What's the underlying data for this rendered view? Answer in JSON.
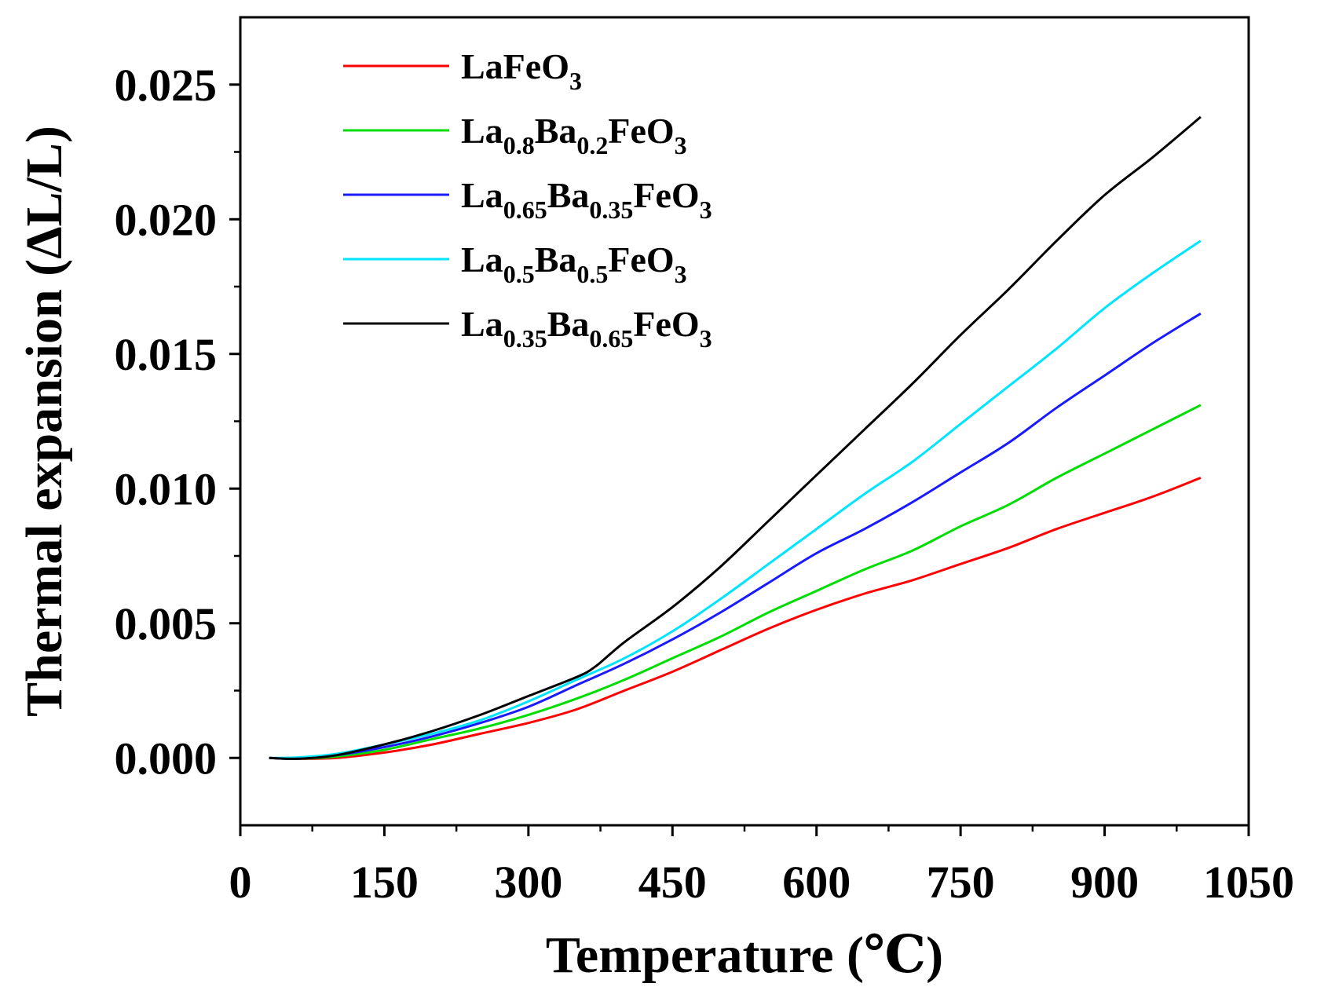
{
  "chart_data": {
    "type": "line",
    "title": "",
    "xlabel": "Temperature (℃)",
    "ylabel": "Thermal expansion (ΔL/L)",
    "xlim": [
      0,
      1050
    ],
    "ylim": [
      -0.0025,
      0.0275
    ],
    "x_ticks": [
      0,
      150,
      300,
      450,
      600,
      750,
      900,
      1050
    ],
    "x_tick_labels": [
      "0",
      "150",
      "300",
      "450",
      "600",
      "750",
      "900",
      "1050"
    ],
    "y_ticks": [
      0.0,
      0.005,
      0.01,
      0.015,
      0.02,
      0.025
    ],
    "y_tick_labels": [
      "0.000",
      "0.005",
      "0.010",
      "0.015",
      "0.020",
      "0.025"
    ],
    "grid": false,
    "legend_position": "top-left",
    "series": [
      {
        "name": "LaFeO3",
        "legend": [
          {
            "t": "LaFeO"
          },
          {
            "t": "3",
            "sub": true
          }
        ],
        "color": "#ff0000",
        "x": [
          30,
          60,
          100,
          150,
          200,
          250,
          300,
          350,
          400,
          450,
          500,
          550,
          600,
          650,
          700,
          750,
          800,
          850,
          900,
          950,
          1000
        ],
        "values": [
          0.0,
          -3e-05,
          0.0,
          0.0002,
          0.0005,
          0.0009,
          0.0013,
          0.0018,
          0.0025,
          0.0032,
          0.004,
          0.0048,
          0.0055,
          0.0061,
          0.0066,
          0.0072,
          0.0078,
          0.0085,
          0.0091,
          0.0097,
          0.0104
        ]
      },
      {
        "name": "La0.8Ba0.2FeO3",
        "legend": [
          {
            "t": "La"
          },
          {
            "t": "0.8",
            "sub": true
          },
          {
            "t": "Ba"
          },
          {
            "t": "0.2",
            "sub": true
          },
          {
            "t": "FeO"
          },
          {
            "t": "3",
            "sub": true
          }
        ],
        "color": "#00dd00",
        "x": [
          30,
          60,
          100,
          150,
          200,
          250,
          300,
          350,
          400,
          450,
          500,
          550,
          600,
          650,
          700,
          750,
          800,
          850,
          900,
          950,
          1000
        ],
        "values": [
          0.0,
          -3e-05,
          5e-05,
          0.0003,
          0.0007,
          0.0011,
          0.0016,
          0.0022,
          0.0029,
          0.0037,
          0.0045,
          0.0054,
          0.0062,
          0.007,
          0.0077,
          0.0086,
          0.0094,
          0.0104,
          0.0113,
          0.0122,
          0.0131
        ]
      },
      {
        "name": "La0.65Ba0.35FeO3",
        "legend": [
          {
            "t": "La"
          },
          {
            "t": "0.65",
            "sub": true
          },
          {
            "t": "Ba"
          },
          {
            "t": "0.35",
            "sub": true
          },
          {
            "t": "FeO"
          },
          {
            "t": "3",
            "sub": true
          }
        ],
        "color": "#1a1aff",
        "x": [
          30,
          60,
          100,
          150,
          200,
          250,
          300,
          350,
          400,
          450,
          500,
          550,
          600,
          650,
          700,
          750,
          800,
          850,
          900,
          950,
          1000
        ],
        "values": [
          0.0,
          -3e-05,
          0.0001,
          0.0004,
          0.0008,
          0.0013,
          0.0019,
          0.0027,
          0.0035,
          0.0044,
          0.0054,
          0.0065,
          0.0076,
          0.0085,
          0.0095,
          0.0106,
          0.0117,
          0.013,
          0.0142,
          0.0154,
          0.0165
        ]
      },
      {
        "name": "La0.5Ba0.5FeO3",
        "legend": [
          {
            "t": "La"
          },
          {
            "t": "0.5",
            "sub": true
          },
          {
            "t": "Ba"
          },
          {
            "t": "0.5",
            "sub": true
          },
          {
            "t": "FeO"
          },
          {
            "t": "3",
            "sub": true
          }
        ],
        "color": "#00e5ff",
        "x": [
          30,
          60,
          100,
          150,
          200,
          250,
          300,
          350,
          400,
          450,
          500,
          550,
          600,
          650,
          700,
          750,
          800,
          850,
          900,
          950,
          1000
        ],
        "values": [
          0.0,
          2e-05,
          0.00015,
          0.0005,
          0.0009,
          0.0014,
          0.0021,
          0.0029,
          0.0037,
          0.0047,
          0.0059,
          0.0072,
          0.0085,
          0.0098,
          0.011,
          0.0124,
          0.0138,
          0.0152,
          0.0167,
          0.018,
          0.0192
        ]
      },
      {
        "name": "La0.35Ba0.65FeO3",
        "legend": [
          {
            "t": "La"
          },
          {
            "t": "0.35",
            "sub": true
          },
          {
            "t": "Ba"
          },
          {
            "t": "0.65",
            "sub": true
          },
          {
            "t": "FeO"
          },
          {
            "t": "3",
            "sub": true
          }
        ],
        "color": "#000000",
        "x": [
          30,
          60,
          100,
          150,
          200,
          250,
          300,
          350,
          370,
          400,
          450,
          500,
          550,
          600,
          650,
          700,
          750,
          800,
          850,
          900,
          950,
          1000
        ],
        "values": [
          0.0,
          -3e-05,
          0.0001,
          0.0005,
          0.001,
          0.0016,
          0.0023,
          0.003,
          0.0034,
          0.0043,
          0.0056,
          0.0071,
          0.0088,
          0.0105,
          0.0122,
          0.0139,
          0.0157,
          0.0174,
          0.0192,
          0.0209,
          0.0223,
          0.0238
        ]
      }
    ]
  }
}
